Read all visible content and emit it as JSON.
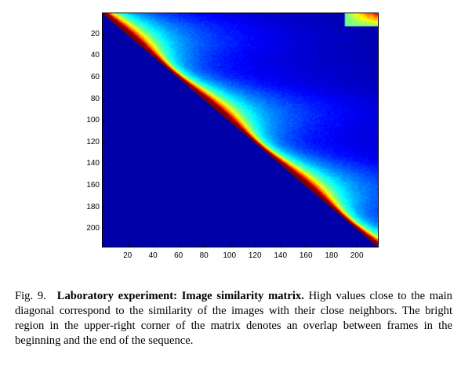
{
  "chart_data": {
    "type": "heatmap",
    "title": "",
    "xlabel": "",
    "ylabel": "",
    "size": [
      216,
      216
    ],
    "xlim": [
      0.5,
      216.5
    ],
    "ylim": [
      0.5,
      216.5
    ],
    "x_ticks": [
      20,
      40,
      60,
      80,
      100,
      120,
      140,
      160,
      180,
      200
    ],
    "y_ticks": [
      20,
      40,
      60,
      80,
      100,
      120,
      140,
      160,
      180,
      200
    ],
    "x_tick_labels": [
      "20",
      "40",
      "60",
      "80",
      "100",
      "120",
      "140",
      "160",
      "180",
      "200"
    ],
    "y_tick_labels": [
      "20",
      "40",
      "60",
      "80",
      "100",
      "120",
      "140",
      "160",
      "180",
      "200"
    ],
    "colormap": "jet",
    "structure": "upper-triangular: values ~1 along the main diagonal decaying with distance from it; lower triangle at minimum; bright block in the upper-right corner",
    "features": {
      "diagonal_value": 1.0,
      "lower_triangle_value": 0.0,
      "corner_block": {
        "rows": [
          1,
          12
        ],
        "cols": [
          190,
          216
        ],
        "value": 0.8
      }
    }
  },
  "caption": {
    "label": "Fig. 9.",
    "title": "Laboratory experiment: Image similarity matrix.",
    "text": " High values close to the main diagonal correspond to the similarity of the images with their close neighbors. The bright region in the upper-right corner of the matrix denotes an overlap between frames in the beginning and the end of the sequence."
  }
}
